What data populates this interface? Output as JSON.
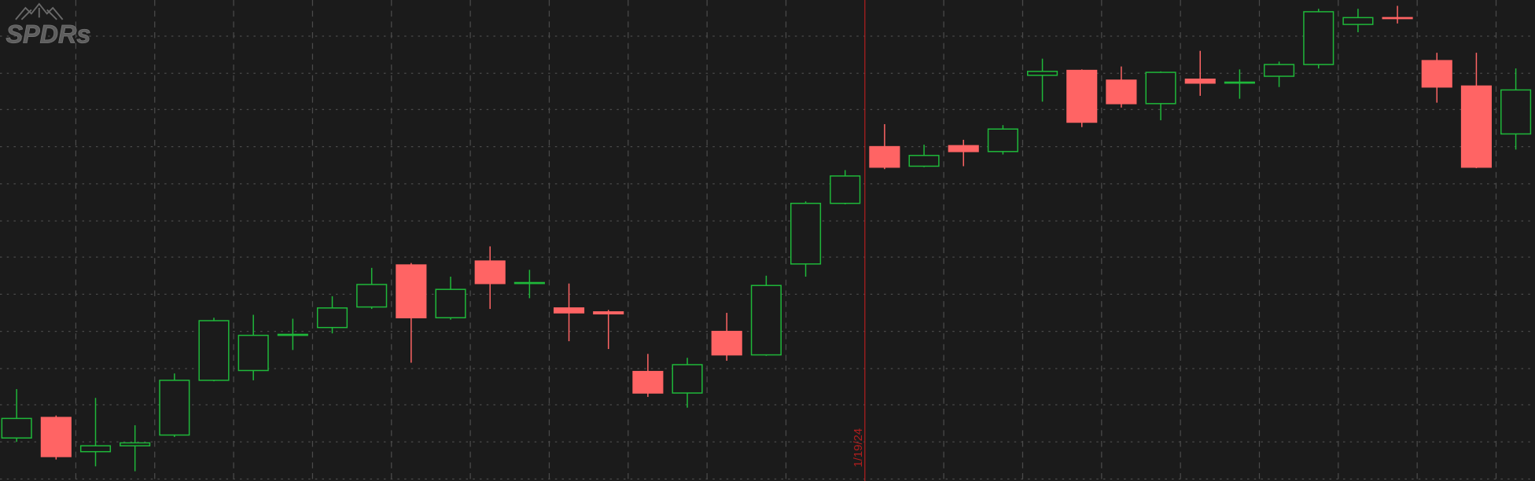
{
  "logo": "SPDRs",
  "chart_data": {
    "type": "candlestick",
    "categories": [
      null,
      null,
      null,
      null,
      null,
      null,
      null,
      null,
      null,
      null,
      null,
      null,
      null,
      null,
      null,
      null,
      null,
      null,
      null,
      null,
      null,
      null,
      "1/19/24",
      null,
      null,
      null,
      null,
      null,
      null,
      null,
      null,
      null,
      null,
      null,
      null,
      null,
      null,
      null,
      null
    ],
    "open": [
      44,
      65,
      30,
      36,
      47,
      103,
      113,
      149,
      157,
      178,
      221,
      167,
      225,
      203,
      177,
      173,
      112,
      90,
      153,
      129,
      222,
      284,
      342,
      322,
      343,
      337,
      415,
      420,
      410,
      386,
      411,
      407,
      414,
      426,
      467,
      474,
      430,
      404,
      355
    ],
    "high": [
      94,
      67,
      85,
      57,
      110,
      167,
      170,
      166,
      189,
      218,
      223,
      209,
      240,
      216,
      202,
      175,
      130,
      126,
      172,
      210,
      286,
      318,
      365,
      344,
      349,
      364,
      432,
      421,
      424,
      419,
      440,
      421,
      429,
      483,
      483,
      486,
      438,
      438,
      422
    ],
    "low": [
      40,
      22,
      15,
      10,
      45,
      102,
      103,
      134,
      151,
      176,
      121,
      165,
      176,
      187,
      143,
      135,
      86,
      75,
      123,
      128,
      209,
      283,
      319,
      321,
      322,
      334,
      388,
      362,
      382,
      369,
      394,
      391,
      403,
      422,
      459,
      468,
      387,
      320,
      339
    ],
    "close": [
      64,
      25,
      36,
      39,
      103,
      164,
      149,
      150,
      177,
      201,
      167,
      196,
      202,
      203,
      172,
      171,
      90,
      119,
      129,
      200,
      284,
      312,
      321,
      333,
      337,
      360,
      419,
      367,
      386,
      418,
      407,
      408,
      426,
      480,
      474,
      473,
      403,
      321,
      400
    ],
    "up_color": "#1fb83a",
    "down_color": "#ff6464",
    "marker_color": "#b01e1e",
    "ylim": [
      0,
      492
    ],
    "yticks": [
      2,
      40,
      78,
      115,
      153,
      191,
      229,
      266,
      304,
      342,
      380,
      417,
      455
    ],
    "grid": true
  }
}
